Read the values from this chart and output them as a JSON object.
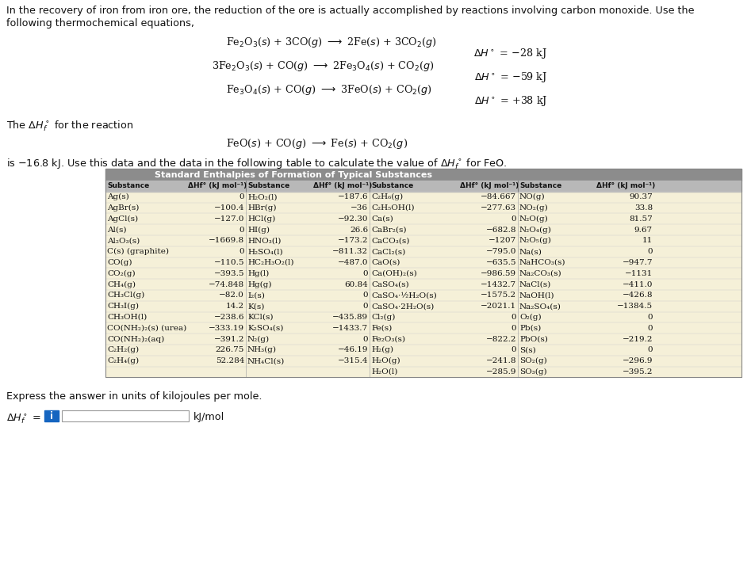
{
  "bg_color": "#ffffff",
  "table_data": [
    [
      "Ag(s)",
      "0",
      "H₂O₂(l)",
      "−187.6",
      "C₂H₆(g)",
      "−84.667",
      "NO(g)",
      "90.37"
    ],
    [
      "AgBr(s)",
      "−100.4",
      "HBr(g)",
      "−36",
      "C₂H₅OH(l)",
      "−277.63",
      "NO₂(g)",
      "33.8"
    ],
    [
      "AgCl(s)",
      "−127.0",
      "HCl(g)",
      "−92.30",
      "Ca(s)",
      "0",
      "N₂O(g)",
      "81.57"
    ],
    [
      "Al(s)",
      "0",
      "HI(g)",
      "26.6",
      "CaBr₂(s)",
      "−682.8",
      "N₂O₄(g)",
      "9.67"
    ],
    [
      "Al₂O₃(s)",
      "−1669.8",
      "HNO₃(l)",
      "−173.2",
      "CaCO₃(s)",
      "−1207",
      "N₂O₅(g)",
      "11"
    ],
    [
      "C(s) (graphite)",
      "0",
      "H₂SO₄(l)",
      "−811.32",
      "CaCl₂(s)",
      "−795.0",
      "Na(s)",
      "0"
    ],
    [
      "CO(g)",
      "−110.5",
      "HC₂H₃O₂(l)",
      "−487.0",
      "CaO(s)",
      "−635.5",
      "NaHCO₃(s)",
      "−947.7"
    ],
    [
      "CO₂(g)",
      "−393.5",
      "Hg(l)",
      "0",
      "Ca(OH)₂(s)",
      "−986.59",
      "Na₂CO₃(s)",
      "−1131"
    ],
    [
      "CH₄(g)",
      "−74.848",
      "Hg(g)",
      "60.84",
      "CaSO₄(s)",
      "−1432.7",
      "NaCl(s)",
      "−411.0"
    ],
    [
      "CH₃Cl(g)",
      "−82.0",
      "I₂(s)",
      "0",
      "CaSO₄·½H₂O(s)",
      "−1575.2",
      "NaOH(l)",
      "−426.8"
    ],
    [
      "CH₃I(g)",
      "14.2",
      "K(s)",
      "0",
      "CaSO₄·2H₂O(s)",
      "−2021.1",
      "Na₂SO₄(s)",
      "−1384.5"
    ],
    [
      "CH₃OH(l)",
      "−238.6",
      "KCl(s)",
      "−435.89",
      "Cl₂(g)",
      "0",
      "O₂(g)",
      "0"
    ],
    [
      "CO(NH₂)₂(s) (urea)",
      "−333.19",
      "K₂SO₄(s)",
      "−1433.7",
      "Fe(s)",
      "0",
      "Pb(s)",
      "0"
    ],
    [
      "CO(NH₂)₂(aq)",
      "−391.2",
      "N₂(g)",
      "0",
      "Fe₂O₃(s)",
      "−822.2",
      "PbO(s)",
      "−219.2"
    ],
    [
      "C₂H₂(g)",
      "226.75",
      "NH₃(g)",
      "−46.19",
      "H₂(g)",
      "0",
      "S(s)",
      "0"
    ],
    [
      "C₂H₄(g)",
      "52.284",
      "NH₄Cl(s)",
      "−315.4",
      "H₂O(g)",
      "−241.8",
      "SO₂(g)",
      "−296.9"
    ],
    [
      "",
      "",
      "",
      "",
      "H₂O(l)",
      "−285.9",
      "SO₃(g)",
      "−395.2"
    ]
  ],
  "table_title": "Standard Enthalpies of Formation of Typical Substances",
  "col_headers": [
    "Substance",
    "ΔHf° (kJ mol⁻¹)",
    "Substance",
    "ΔHf° (kJ mol⁻¹)",
    "Substance",
    "ΔHf° (kJ mol⁻¹)",
    "Substance",
    "ΔHf° (kJ mol⁻¹)"
  ],
  "table_bg": "#f5f0d8",
  "table_header_bg": "#b0b0b0",
  "table_title_bg": "#9a9a9a"
}
